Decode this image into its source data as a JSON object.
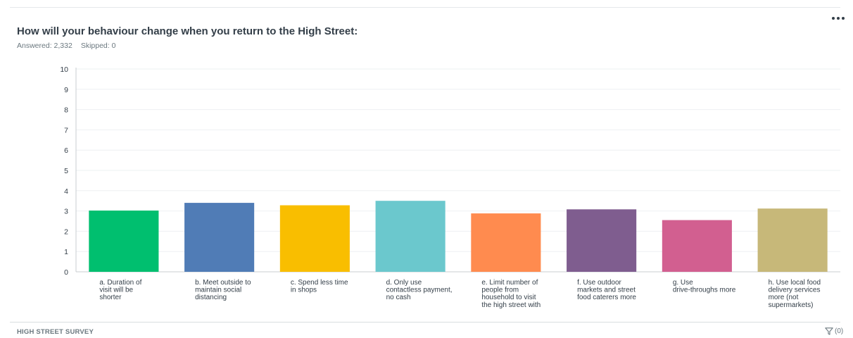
{
  "title": "How will your behaviour change when you return to the High Street:",
  "answered_label": "Answered: 2,332",
  "skipped_label": "Skipped: 0",
  "footer": {
    "survey_name": "HIGH STREET SURVEY",
    "filter_count": "(0)"
  },
  "icons": {
    "menu": "more-dots-icon",
    "filter": "filter-funnel-icon"
  },
  "chart_data": {
    "type": "bar",
    "title": "",
    "xlabel": "",
    "ylabel": "",
    "ylim": [
      0,
      10
    ],
    "yticks": [
      0,
      1,
      2,
      3,
      4,
      5,
      6,
      7,
      8,
      9,
      10
    ],
    "grid": true,
    "categories": [
      "a. Duration of visit will be shorter",
      "b. Meet outside to maintain social distancing",
      "c. Spend less time in shops",
      "d. Only use contactless payment, no cash",
      "e. Limit number of people from household to visit the high street with",
      "f. Use outdoor markets and street food caterers more",
      "g. Use drive-throughs more",
      "h. Use local food delivery services more (not supermarkets)"
    ],
    "category_lines": [
      [
        "a. Duration of",
        "visit will be",
        "shorter"
      ],
      [
        "b. Meet outside to",
        "maintain social",
        "distancing"
      ],
      [
        "c. Spend less time",
        "in shops"
      ],
      [
        "d. Only use",
        "contactless payment,",
        "no cash"
      ],
      [
        "e. Limit number of",
        "people from",
        "household to visit",
        "the high street with"
      ],
      [
        "f. Use outdoor",
        "markets and street",
        "food caterers more"
      ],
      [
        "g. Use",
        "drive-throughs more"
      ],
      [
        "h. Use local food",
        "delivery services",
        "more (not",
        "supermarkets)"
      ]
    ],
    "values": [
      3.02,
      3.4,
      3.28,
      3.5,
      2.88,
      3.08,
      2.55,
      3.12
    ],
    "colors": [
      "#00bf6f",
      "#507cb6",
      "#f9be00",
      "#6bc8cd",
      "#ff8b4f",
      "#7f5d8f",
      "#d25f90",
      "#c7b879"
    ]
  }
}
